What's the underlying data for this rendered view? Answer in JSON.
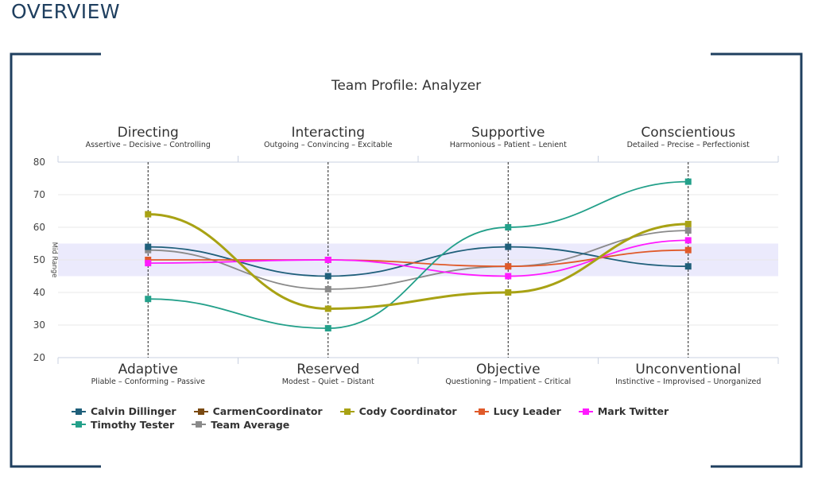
{
  "page": {
    "heading": "OVERVIEW"
  },
  "chart_data": {
    "type": "line",
    "title": "Team Profile: Analyzer",
    "band_label": "Mid Range",
    "band_range": [
      45,
      55
    ],
    "ylim": [
      20,
      80
    ],
    "yticks": [
      20,
      30,
      40,
      50,
      60,
      70,
      80
    ],
    "grid": true,
    "legend_position": "bottom",
    "top_axis": [
      {
        "name": "Directing",
        "desc": "Assertive – Decisive – Controlling"
      },
      {
        "name": "Interacting",
        "desc": "Outgoing – Convincing – Excitable"
      },
      {
        "name": "Supportive",
        "desc": "Harmonious – Patient – Lenient"
      },
      {
        "name": "Conscientious",
        "desc": "Detailed – Precise – Perfectionist"
      }
    ],
    "bottom_axis": [
      {
        "name": "Adaptive",
        "desc": "Pliable – Conforming – Passive"
      },
      {
        "name": "Reserved",
        "desc": "Modest – Quiet – Distant"
      },
      {
        "name": "Objective",
        "desc": "Questioning – Impatient – Critical"
      },
      {
        "name": "Unconventional",
        "desc": "Instinctive – Improvised – Unorganized"
      }
    ],
    "series": [
      {
        "name": "Calvin Dillinger",
        "color": "#1f5f7a",
        "values": [
          54,
          45,
          54,
          48
        ]
      },
      {
        "name": "CarmenCoordinator",
        "color": "#7a4a12",
        "values": []
      },
      {
        "name": "Cody Coordinator",
        "color": "#a8a214",
        "values": [
          64,
          35,
          40,
          61
        ],
        "bold": true
      },
      {
        "name": "Lucy Leader",
        "color": "#e05a2a",
        "values": [
          50,
          50,
          48,
          53
        ]
      },
      {
        "name": "Mark Twitter",
        "color": "#ff1aff",
        "values": [
          49,
          50,
          45,
          56
        ]
      },
      {
        "name": "Timothy Tester",
        "color": "#23a08a",
        "values": [
          38,
          29,
          60,
          74
        ]
      },
      {
        "name": "Team Average",
        "color": "#8a8a8a",
        "values": [
          53,
          41,
          48,
          59
        ]
      }
    ]
  }
}
